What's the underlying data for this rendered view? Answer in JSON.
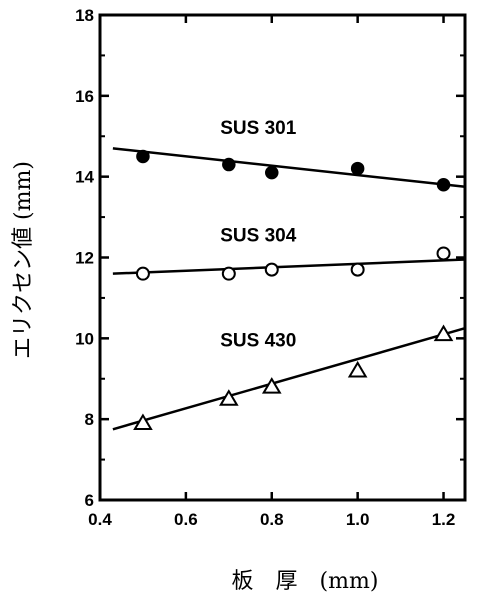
{
  "chart_data": {
    "type": "scatter",
    "title": "",
    "xlabel": "板　厚　(mm)",
    "ylabel": "エリクセン値 (mm)",
    "xlim": [
      0.4,
      1.25
    ],
    "ylim": [
      6,
      18
    ],
    "xticks": [
      0.4,
      0.6,
      0.8,
      1.0,
      1.2
    ],
    "xtick_labels": [
      "0.4",
      "0.6",
      "0.8",
      "1.0",
      "1.2"
    ],
    "yticks": [
      6,
      8,
      10,
      12,
      14,
      16,
      18
    ],
    "ytick_labels": [
      "6",
      "8",
      "10",
      "12",
      "14",
      "16",
      "18"
    ],
    "grid": false,
    "legend": "none",
    "series": [
      {
        "name": "SUS 301",
        "marker": "filled-circle",
        "x": [
          0.5,
          0.7,
          0.8,
          1.0,
          1.2
        ],
        "y": [
          14.5,
          14.3,
          14.1,
          14.2,
          13.8
        ],
        "fit_line": {
          "x": [
            0.43,
            1.25
          ],
          "y": [
            14.7,
            13.75
          ]
        }
      },
      {
        "name": "SUS 304",
        "marker": "open-circle",
        "x": [
          0.5,
          0.7,
          0.8,
          1.0,
          1.2
        ],
        "y": [
          11.6,
          11.6,
          11.7,
          11.7,
          12.1
        ],
        "fit_line": {
          "x": [
            0.43,
            1.25
          ],
          "y": [
            11.6,
            11.95
          ]
        }
      },
      {
        "name": "SUS 430",
        "marker": "open-triangle",
        "x": [
          0.5,
          0.7,
          0.8,
          1.0,
          1.2
        ],
        "y": [
          7.9,
          8.5,
          8.8,
          9.2,
          10.1
        ],
        "fit_line": {
          "x": [
            0.43,
            1.25
          ],
          "y": [
            7.75,
            10.25
          ]
        }
      }
    ]
  }
}
